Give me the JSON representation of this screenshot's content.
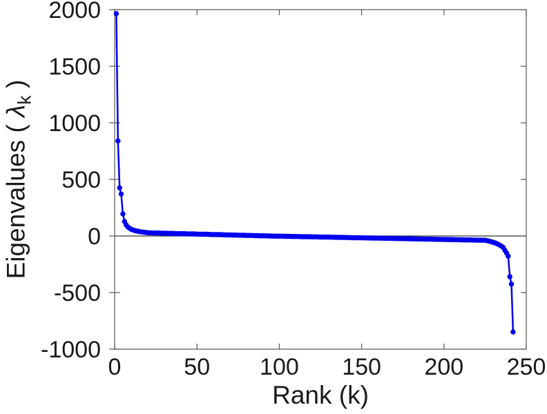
{
  "figure": {
    "background_color": "#ffffff",
    "text_color": "#1a1a1a",
    "axis_color": "#555555",
    "zero_line_color": "#333333"
  },
  "chart_data": {
    "type": "line",
    "title": "",
    "xlabel": "Rank (k)",
    "ylabel": "Eigenvalues ( λk )",
    "ylabel_parts": {
      "prefix": "Eigenvalues ( ",
      "symbol": "λ",
      "subscript": "k",
      "suffix": " )"
    },
    "xlim": [
      0,
      250
    ],
    "ylim": [
      -1000,
      2000
    ],
    "xticks": [
      0,
      50,
      100,
      150,
      200,
      250
    ],
    "yticks": [
      -1000,
      -500,
      0,
      500,
      1000,
      1500,
      2000
    ],
    "grid": false,
    "zero_reference_line": true,
    "line_color": "#0000ee",
    "marker": "filled-circle",
    "marker_color": "#0000ee",
    "x_start": 1,
    "x_step": 1,
    "values": [
      1965,
      840,
      425,
      370,
      195,
      128,
      98,
      80,
      68,
      60,
      54,
      49,
      45,
      42,
      39,
      37,
      35,
      33,
      31,
      29,
      28,
      28,
      27,
      27,
      26,
      26,
      26,
      25,
      25,
      25,
      24,
      24,
      23,
      23,
      23,
      22,
      22,
      21,
      21,
      21,
      20,
      20,
      20,
      19,
      19,
      18,
      18,
      18,
      17,
      17,
      16,
      16,
      16,
      15,
      15,
      15,
      14,
      14,
      13,
      13,
      13,
      12,
      12,
      12,
      11,
      11,
      10,
      10,
      10,
      9,
      9,
      8,
      8,
      8,
      7,
      7,
      7,
      6,
      6,
      5,
      5,
      5,
      4,
      4,
      3,
      3,
      3,
      2,
      2,
      2,
      1,
      1,
      0,
      0,
      0,
      -1,
      -1,
      -1,
      -1,
      -2,
      -2,
      -2,
      -3,
      -3,
      -3,
      -3,
      -4,
      -4,
      -4,
      -5,
      -5,
      -5,
      -6,
      -6,
      -6,
      -6,
      -7,
      -7,
      -7,
      -8,
      -8,
      -8,
      -8,
      -9,
      -9,
      -9,
      -10,
      -10,
      -10,
      -10,
      -11,
      -11,
      -11,
      -12,
      -12,
      -12,
      -12,
      -13,
      -13,
      -13,
      -14,
      -14,
      -14,
      -15,
      -15,
      -15,
      -15,
      -16,
      -16,
      -16,
      -17,
      -17,
      -17,
      -17,
      -18,
      -18,
      -18,
      -19,
      -19,
      -19,
      -19,
      -20,
      -20,
      -20,
      -21,
      -21,
      -21,
      -21,
      -22,
      -22,
      -22,
      -23,
      -23,
      -23,
      -23,
      -24,
      -24,
      -24,
      -25,
      -25,
      -25,
      -26,
      -26,
      -26,
      -26,
      -27,
      -27,
      -27,
      -28,
      -28,
      -28,
      -28,
      -29,
      -29,
      -29,
      -30,
      -30,
      -30,
      -30,
      -31,
      -31,
      -31,
      -32,
      -32,
      -32,
      -32,
      -33,
      -33,
      -33,
      -34,
      -34,
      -34,
      -35,
      -35,
      -35,
      -35,
      -36,
      -36,
      -36,
      -37,
      -37,
      -37,
      -37,
      -38,
      -38,
      -41,
      -44,
      -48,
      -52,
      -56,
      -61,
      -67,
      -74,
      -82,
      -91,
      -102,
      -126,
      -150,
      -178,
      -360,
      -425,
      -848
    ]
  }
}
